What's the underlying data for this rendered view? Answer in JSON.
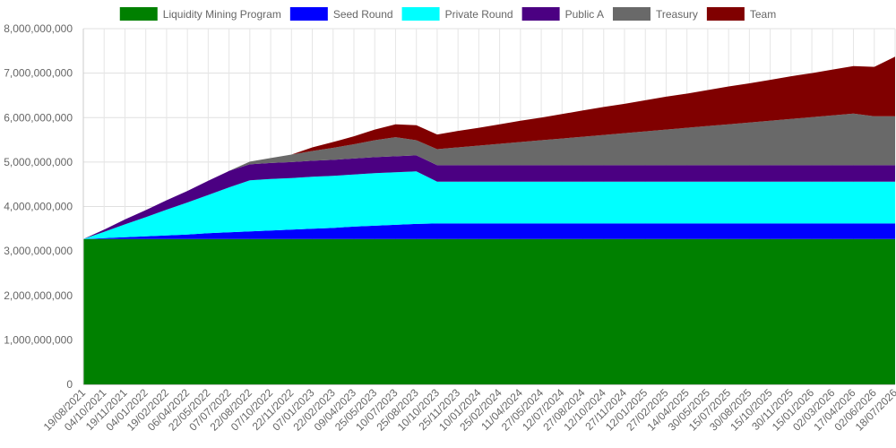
{
  "chart_data": {
    "type": "area",
    "stacked": true,
    "title": "",
    "xlabel": "",
    "ylabel": "",
    "ylim": [
      0,
      8000000000
    ],
    "yticks": [
      0,
      1000000000,
      2000000000,
      3000000000,
      4000000000,
      5000000000,
      6000000000,
      7000000000,
      8000000000
    ],
    "ytick_labels": [
      "0",
      "1,000,000,000",
      "2,000,000,000",
      "3,000,000,000",
      "4,000,000,000",
      "5,000,000,000",
      "6,000,000,000",
      "7,000,000,000",
      "8,000,000,000"
    ],
    "grid": true,
    "legend_position": "top",
    "x": [
      "19/08/2021",
      "04/10/2021",
      "19/11/2021",
      "04/01/2022",
      "19/02/2022",
      "06/04/2022",
      "22/05/2022",
      "07/07/2022",
      "22/08/2022",
      "07/10/2022",
      "22/11/2022",
      "07/01/2023",
      "22/02/2023",
      "09/04/2023",
      "25/05/2023",
      "10/07/2023",
      "25/08/2023",
      "10/10/2023",
      "25/11/2023",
      "10/01/2024",
      "25/02/2024",
      "11/04/2024",
      "27/05/2024",
      "12/07/2024",
      "27/08/2024",
      "12/10/2024",
      "27/11/2024",
      "12/01/2025",
      "27/02/2025",
      "14/04/2025",
      "30/05/2025",
      "15/07/2025",
      "30/08/2025",
      "15/10/2025",
      "30/11/2025",
      "15/01/2026",
      "02/03/2026",
      "17/04/2026",
      "02/06/2026",
      "18/07/2026"
    ],
    "series": [
      {
        "name": "Liquidity Mining Program",
        "color": "#008000",
        "values": [
          3270000000,
          3270000000,
          3270000000,
          3270000000,
          3270000000,
          3270000000,
          3270000000,
          3270000000,
          3270000000,
          3270000000,
          3270000000,
          3270000000,
          3270000000,
          3270000000,
          3270000000,
          3270000000,
          3270000000,
          3270000000,
          3270000000,
          3270000000,
          3270000000,
          3270000000,
          3270000000,
          3270000000,
          3270000000,
          3270000000,
          3270000000,
          3270000000,
          3270000000,
          3270000000,
          3270000000,
          3270000000,
          3270000000,
          3270000000,
          3270000000,
          3270000000,
          3270000000,
          3270000000,
          3270000000,
          3270000000
        ]
      },
      {
        "name": "Seed Round",
        "color": "#0000ff",
        "values": [
          0,
          20000000,
          40000000,
          60000000,
          80000000,
          100000000,
          130000000,
          150000000,
          170000000,
          190000000,
          210000000,
          230000000,
          250000000,
          280000000,
          300000000,
          320000000,
          340000000,
          350000000,
          350000000,
          350000000,
          350000000,
          350000000,
          350000000,
          350000000,
          350000000,
          350000000,
          350000000,
          350000000,
          350000000,
          350000000,
          350000000,
          350000000,
          350000000,
          350000000,
          350000000,
          350000000,
          350000000,
          350000000,
          350000000,
          350000000
        ]
      },
      {
        "name": "Private Round",
        "color": "#00ffff",
        "values": [
          0,
          140000000,
          290000000,
          430000000,
          580000000,
          720000000,
          860000000,
          1010000000,
          1150000000,
          1160000000,
          1160000000,
          1170000000,
          1170000000,
          1170000000,
          1180000000,
          1180000000,
          1180000000,
          940000000,
          940000000,
          940000000,
          940000000,
          940000000,
          940000000,
          940000000,
          940000000,
          940000000,
          940000000,
          940000000,
          940000000,
          940000000,
          940000000,
          940000000,
          940000000,
          940000000,
          940000000,
          940000000,
          940000000,
          940000000,
          940000000,
          940000000
        ]
      },
      {
        "name": "Public A",
        "color": "#4b0082",
        "values": [
          0,
          50000000,
          110000000,
          160000000,
          210000000,
          260000000,
          320000000,
          370000000,
          360000000,
          360000000,
          360000000,
          360000000,
          360000000,
          360000000,
          360000000,
          360000000,
          360000000,
          370000000,
          370000000,
          370000000,
          370000000,
          370000000,
          370000000,
          370000000,
          370000000,
          370000000,
          370000000,
          370000000,
          370000000,
          370000000,
          370000000,
          370000000,
          370000000,
          370000000,
          370000000,
          370000000,
          370000000,
          370000000,
          370000000,
          370000000
        ]
      },
      {
        "name": "Treasury",
        "color": "#696969",
        "values": [
          0,
          0,
          0,
          0,
          0,
          0,
          0,
          0,
          60000000,
          110000000,
          170000000,
          220000000,
          270000000,
          320000000,
          380000000,
          430000000,
          340000000,
          360000000,
          400000000,
          440000000,
          480000000,
          520000000,
          560000000,
          600000000,
          640000000,
          680000000,
          720000000,
          760000000,
          800000000,
          840000000,
          880000000,
          920000000,
          960000000,
          1000000000,
          1040000000,
          1080000000,
          1120000000,
          1160000000,
          1100000000,
          1100000000
        ]
      },
      {
        "name": "Team",
        "color": "#800000",
        "values": [
          0,
          0,
          0,
          0,
          0,
          0,
          0,
          0,
          0,
          0,
          0,
          80000000,
          130000000,
          180000000,
          240000000,
          290000000,
          340000000,
          330000000,
          370000000,
          400000000,
          440000000,
          480000000,
          510000000,
          550000000,
          590000000,
          630000000,
          660000000,
          700000000,
          740000000,
          770000000,
          810000000,
          850000000,
          880000000,
          920000000,
          960000000,
          990000000,
          1030000000,
          1070000000,
          1110000000,
          1340000000
        ]
      }
    ]
  }
}
